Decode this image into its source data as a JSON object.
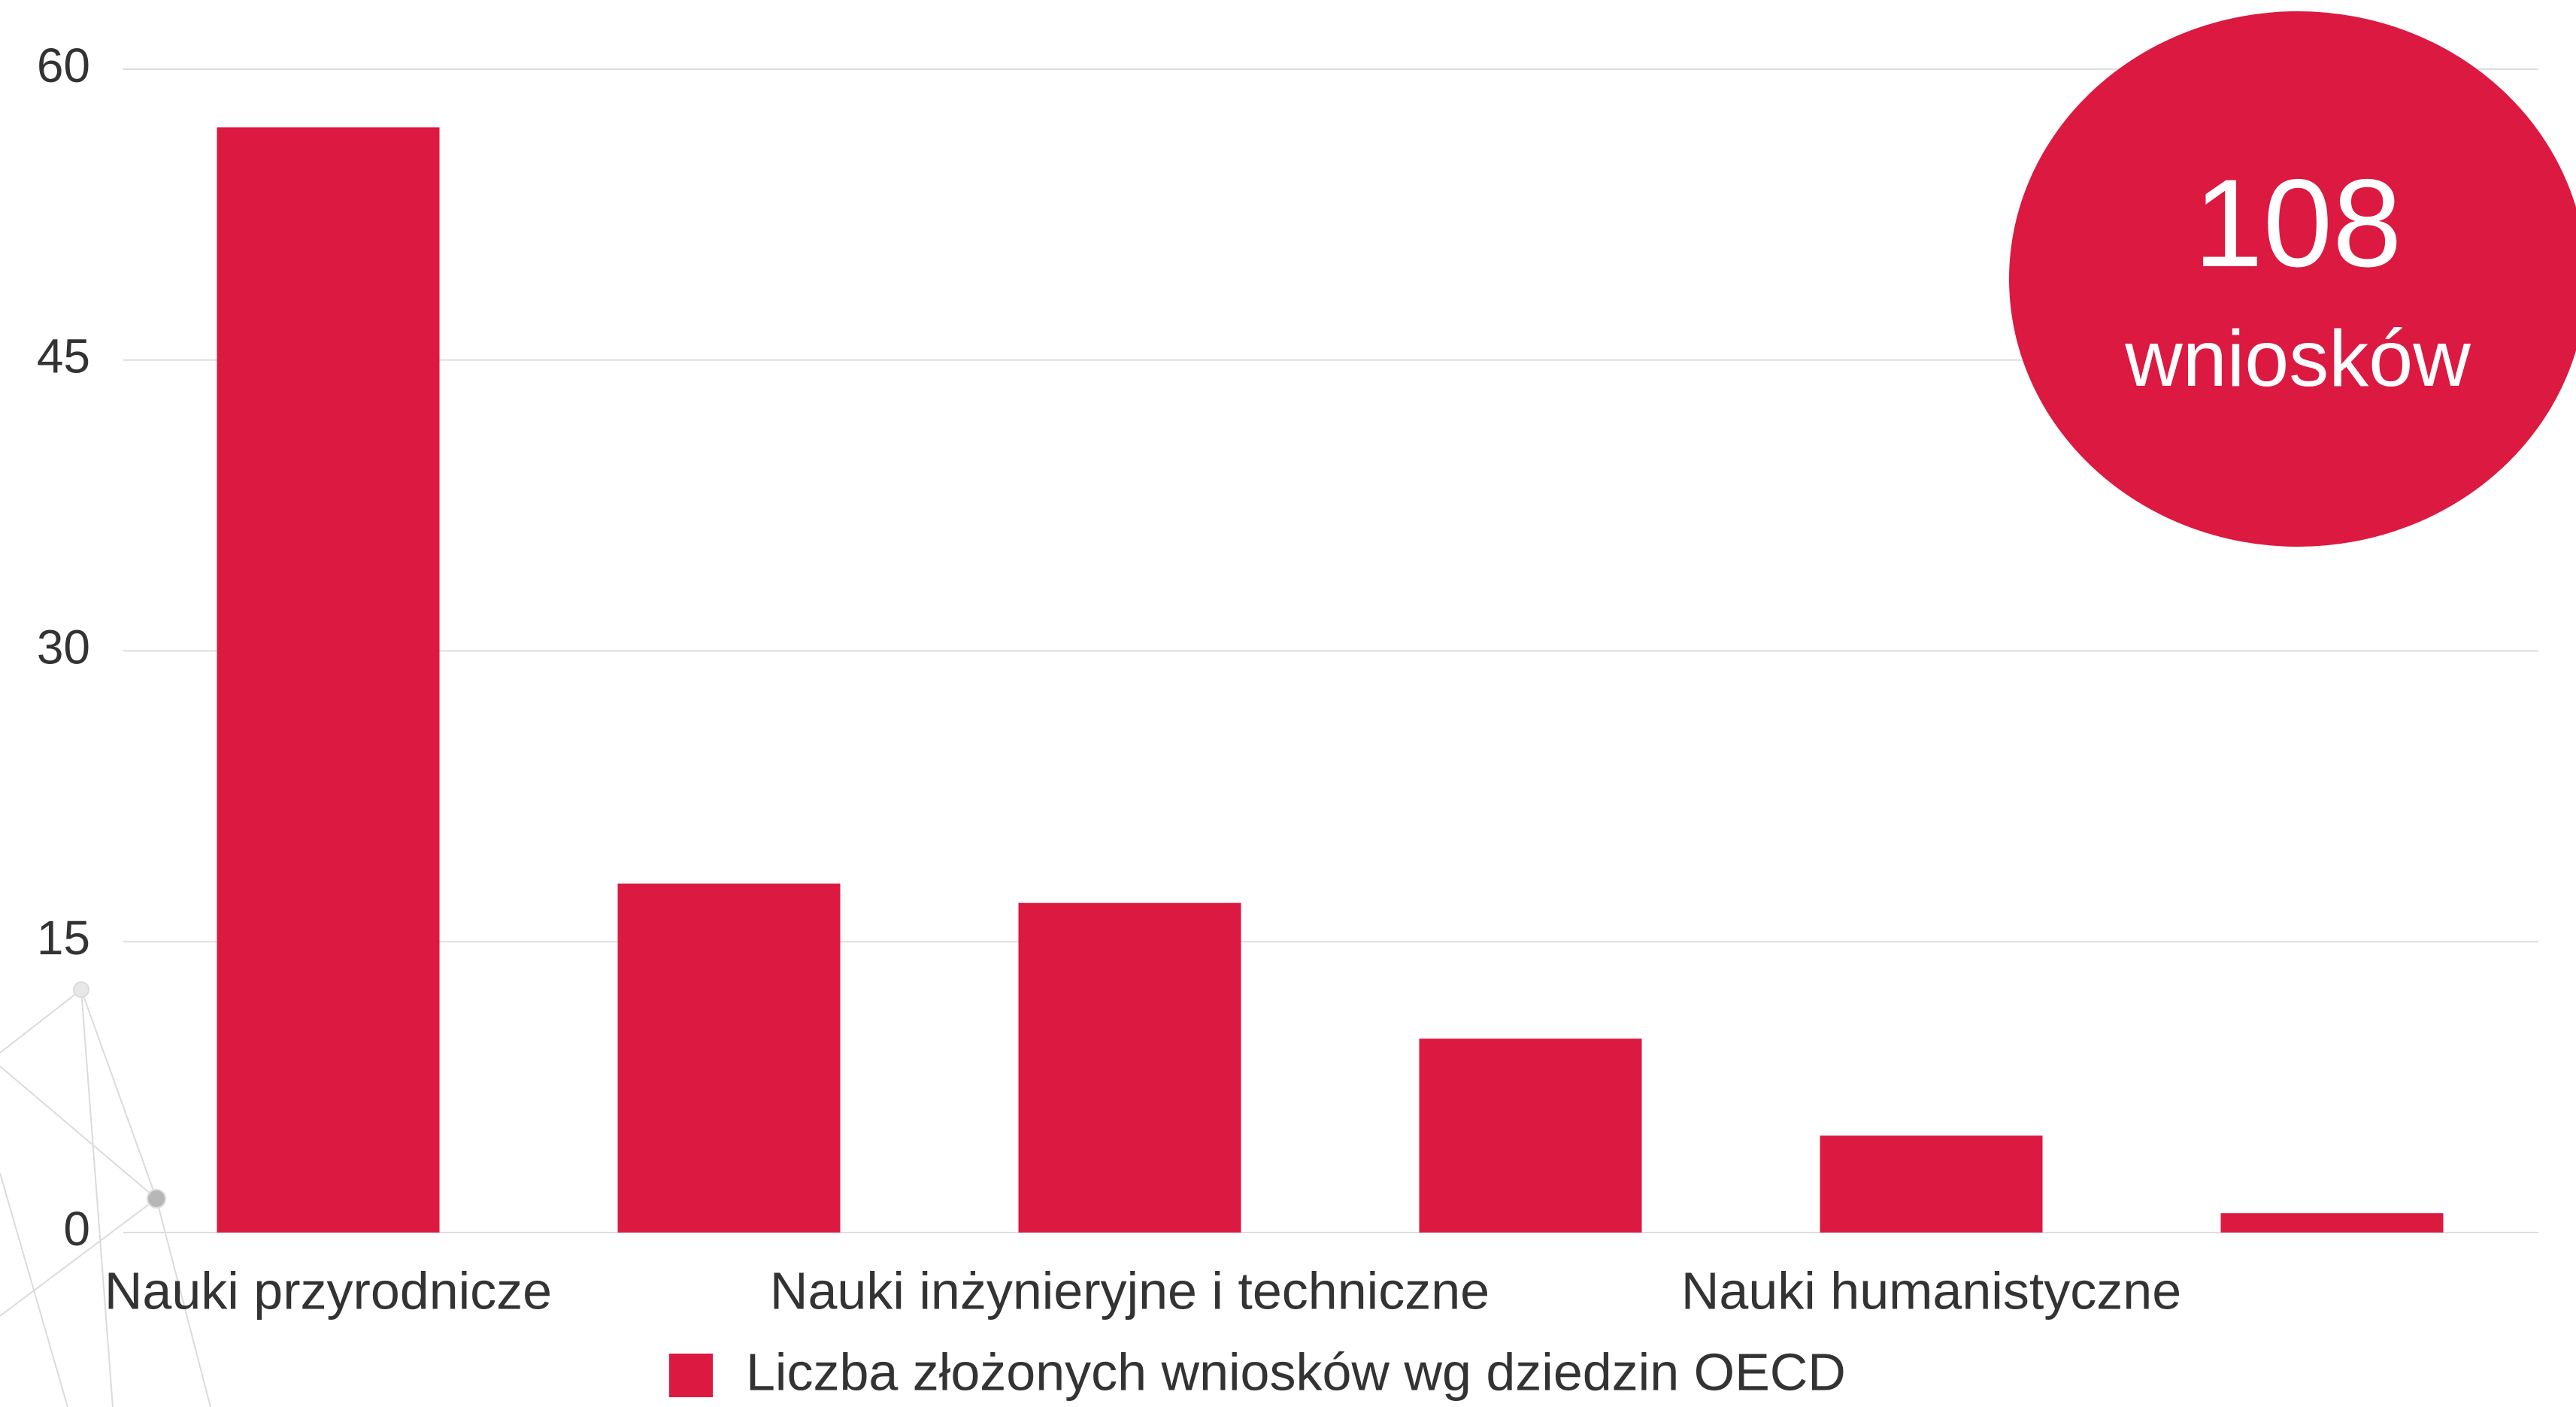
{
  "chart_data": {
    "type": "bar",
    "categories": [
      "Nauki przyrodnicze",
      null,
      "Nauki inżynieryjne i techniczne",
      null,
      "Nauki humanistyczne",
      null
    ],
    "series": [
      {
        "name": "Liczba złożonych wniosków wg dziedzin OECD",
        "color": "#dc1940",
        "values": [
          57,
          18,
          17,
          10,
          5,
          1
        ]
      }
    ],
    "ylim": [
      0,
      60
    ],
    "yticks": [
      0,
      15,
      30,
      45,
      60
    ],
    "grid": true,
    "annotation": {
      "value": 108,
      "text": "wniosków",
      "color": "#dc1940"
    }
  }
}
